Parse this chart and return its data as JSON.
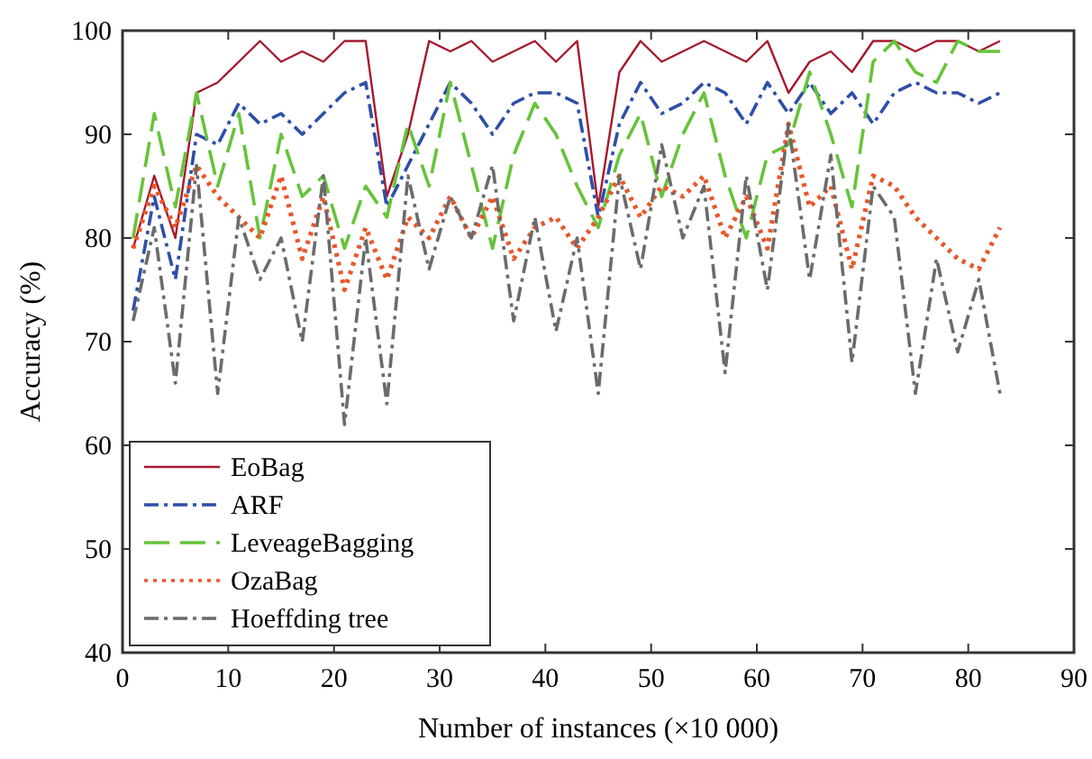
{
  "chart_data": {
    "type": "line",
    "xlabel": "Number of instances (×10 000)",
    "ylabel": "Accuracy (%)",
    "x": [
      1,
      3,
      5,
      7,
      9,
      11,
      13,
      15,
      17,
      19,
      21,
      23,
      25,
      27,
      29,
      31,
      33,
      35,
      37,
      39,
      41,
      43,
      45,
      47,
      49,
      51,
      53,
      55,
      57,
      59,
      61,
      63,
      65,
      67,
      69,
      71,
      73,
      75,
      77,
      79,
      81,
      83
    ],
    "series": [
      {
        "name": "EoBag",
        "color": "#a6192e",
        "line_style": "solid",
        "values": [
          79,
          86,
          80,
          94,
          95,
          97,
          99,
          97,
          98,
          97,
          99,
          99,
          84,
          90,
          99,
          98,
          99,
          97,
          98,
          99,
          97,
          99,
          83,
          96,
          99,
          97,
          98,
          99,
          98,
          97,
          99,
          94,
          97,
          98,
          96,
          99,
          99,
          98,
          99,
          99,
          98,
          99
        ]
      },
      {
        "name": "ARF",
        "color": "#2e4fa8",
        "line_style": "dashdot",
        "values": [
          73,
          84,
          76,
          90,
          89,
          93,
          91,
          92,
          90,
          92,
          94,
          95,
          83,
          87,
          91,
          95,
          93,
          90,
          93,
          94,
          94,
          93,
          82,
          91,
          95,
          92,
          93,
          95,
          94,
          91,
          95,
          92,
          95,
          92,
          94,
          91,
          94,
          95,
          94,
          94,
          93,
          94
        ]
      },
      {
        "name": "LeveageBagging",
        "color": "#66c33a",
        "line_style": "dashed",
        "values": [
          80,
          92,
          83,
          94,
          85,
          92,
          80,
          90,
          84,
          86,
          79,
          85,
          82,
          91,
          85,
          95,
          87,
          79,
          88,
          93,
          90,
          85,
          81,
          88,
          92,
          84,
          90,
          94,
          86,
          80,
          88,
          89,
          96,
          90,
          83,
          97,
          99,
          96,
          95,
          99,
          98,
          98
        ]
      },
      {
        "name": "OzaBag",
        "color": "#e8572a",
        "line_style": "dotted",
        "values": [
          79,
          85,
          81,
          87,
          84,
          82,
          80,
          86,
          78,
          84,
          75,
          81,
          76,
          82,
          80,
          84,
          80,
          84,
          78,
          81,
          82,
          79,
          82,
          86,
          82,
          85,
          84,
          86,
          80,
          84,
          79,
          91,
          83,
          85,
          77,
          86,
          85,
          82,
          80,
          78,
          77,
          81
        ]
      },
      {
        "name": "Hoeffding tree",
        "color": "#6b6b6b",
        "line_style": "dashdot",
        "values": [
          72,
          81,
          66,
          87,
          65,
          82,
          76,
          80,
          70,
          86,
          62,
          80,
          64,
          86,
          77,
          84,
          80,
          87,
          72,
          82,
          71,
          80,
          65,
          86,
          77,
          89,
          80,
          85,
          67,
          86,
          75,
          91,
          76,
          88,
          68,
          85,
          82,
          65,
          78,
          69,
          76,
          65
        ]
      }
    ],
    "xlim": [
      0,
      90
    ],
    "xticks": [
      0,
      10,
      20,
      30,
      40,
      50,
      60,
      70,
      80,
      90
    ],
    "ylim": [
      40,
      100
    ],
    "yticks": [
      40,
      50,
      60,
      70,
      80,
      90,
      100
    ],
    "grid": false,
    "legend": "bottom left"
  }
}
